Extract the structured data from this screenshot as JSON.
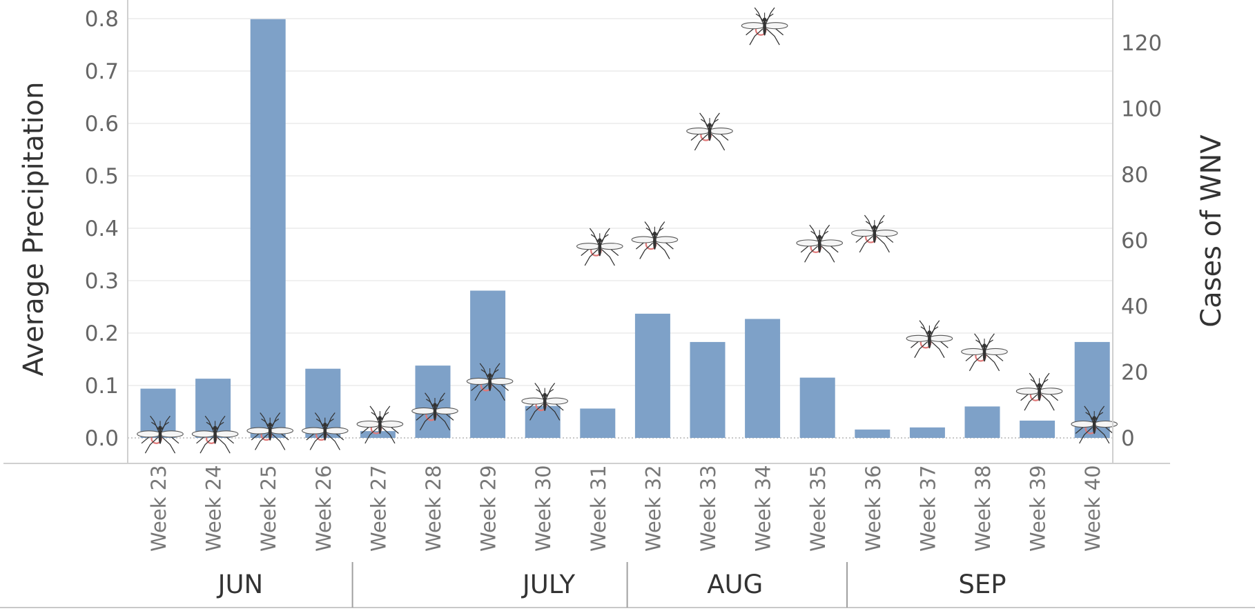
{
  "chart_data": {
    "type": "bar",
    "categories": [
      "Week 23",
      "Week 24",
      "Week 25",
      "Week 26",
      "Week 27",
      "Week 28",
      "Week 29",
      "Week 30",
      "Week 31",
      "Week 32",
      "Week 33",
      "Week 34",
      "Week 35",
      "Week 36",
      "Week 37",
      "Week 38",
      "Week 39",
      "Week 40"
    ],
    "series": [
      {
        "type": "bar",
        "axis": "left",
        "color": "#7ea1c8",
        "values": [
          0.094,
          0.113,
          0.799,
          0.132,
          0.013,
          0.138,
          0.281,
          0.061,
          0.056,
          0.237,
          0.183,
          0.227,
          0.115,
          0.016,
          0.02,
          0.06,
          0.033,
          0.183
        ]
      },
      {
        "type": "scatter",
        "axis": "right",
        "marker": "mosquito-icon",
        "values": [
          1,
          1,
          2,
          2,
          4,
          8,
          17,
          11,
          58,
          60,
          93,
          125,
          59,
          62,
          30,
          26,
          14,
          4
        ]
      }
    ],
    "ylabel_left": "Average Precipitation",
    "ylabel_right": "Cases of WNV",
    "ylim_left": [
      -0.05,
      0.8
    ],
    "yticks_left": [
      "0.0",
      "0.1",
      "0.2",
      "0.3",
      "0.4",
      "0.5",
      "0.6",
      "0.7",
      "0.8"
    ],
    "ylim_right": [
      -8,
      130
    ],
    "yticks_right": [
      "0",
      "20",
      "40",
      "60",
      "80",
      "100",
      "120"
    ],
    "months": [
      {
        "label": "JUN",
        "span": [
          0,
          3
        ]
      },
      {
        "label": "JULY",
        "span": [
          4,
          8
        ]
      },
      {
        "label": "AUG",
        "span": [
          9,
          12
        ]
      },
      {
        "label": "SEP",
        "span": [
          13,
          17
        ]
      }
    ],
    "grid": "horizontal",
    "legend": "none"
  }
}
